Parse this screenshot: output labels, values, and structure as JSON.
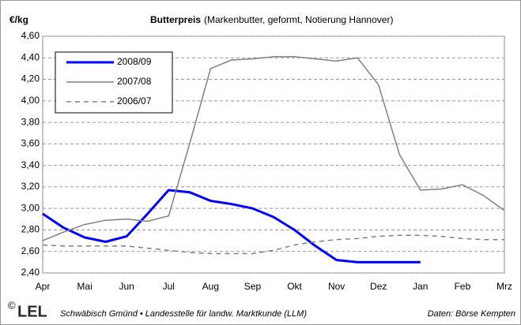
{
  "chart_data": {
    "type": "line",
    "title": "Butterpreis",
    "subtitle": "(Markenbutter, geformt, Notierung Hannover)",
    "ylabel": "€/kg",
    "categories": [
      "Apr",
      null,
      "Mai",
      null,
      "Jun",
      null,
      "Jul",
      null,
      "Aug",
      null,
      "Sep",
      null,
      "Okt",
      null,
      "Nov",
      null,
      "Dez",
      null,
      "Jan",
      null,
      "Feb",
      null,
      "Mrz"
    ],
    "series": [
      {
        "name": "2008/09",
        "color": "#0000ff",
        "style": "solid",
        "width": 3,
        "values": [
          2.95,
          2.82,
          2.73,
          2.69,
          2.74,
          2.95,
          3.17,
          3.15,
          3.07,
          3.04,
          3.0,
          2.92,
          2.8,
          2.65,
          2.52,
          2.5,
          2.5,
          2.5,
          2.5,
          null,
          null,
          null,
          null
        ]
      },
      {
        "name": "2007/08",
        "color": "#808080",
        "style": "solid",
        "width": 1.5,
        "values": [
          2.7,
          2.78,
          2.85,
          2.89,
          2.9,
          2.88,
          2.93,
          3.6,
          4.3,
          4.38,
          4.39,
          4.41,
          4.41,
          4.39,
          4.37,
          4.4,
          4.15,
          3.5,
          3.17,
          3.18,
          3.22,
          3.12,
          2.98
        ]
      },
      {
        "name": "2006/07",
        "color": "#808080",
        "style": "dashed",
        "width": 1.5,
        "values": [
          2.66,
          2.65,
          2.65,
          2.65,
          2.65,
          2.63,
          2.61,
          2.59,
          2.58,
          2.58,
          2.58,
          2.61,
          2.66,
          2.69,
          2.71,
          2.72,
          2.74,
          2.75,
          2.75,
          2.74,
          2.72,
          2.71,
          2.71
        ]
      }
    ],
    "ylim": [
      2.4,
      4.6
    ],
    "yticks": [
      {
        "value": 2.4,
        "label": "2,40"
      },
      {
        "value": 2.6,
        "label": "2,60"
      },
      {
        "value": 2.8,
        "label": "2,80"
      },
      {
        "value": 3.0,
        "label": "3,00"
      },
      {
        "value": 3.2,
        "label": "3,20"
      },
      {
        "value": 3.4,
        "label": "3,40"
      },
      {
        "value": 3.6,
        "label": "3,60"
      },
      {
        "value": 3.8,
        "label": "3,80"
      },
      {
        "value": 4.0,
        "label": "4,00"
      },
      {
        "value": 4.2,
        "label": "4,20"
      },
      {
        "value": 4.4,
        "label": "4,40"
      },
      {
        "value": 4.6,
        "label": "4,60"
      }
    ],
    "grid": true,
    "legend": "upper-left",
    "footer": {
      "copyright": "©",
      "logo": "LEL",
      "source": "Schwäbisch Gmünd • Landesstelle für landw. Marktkunde (LLM)",
      "data_source": "Daten: Börse Kempten"
    }
  }
}
